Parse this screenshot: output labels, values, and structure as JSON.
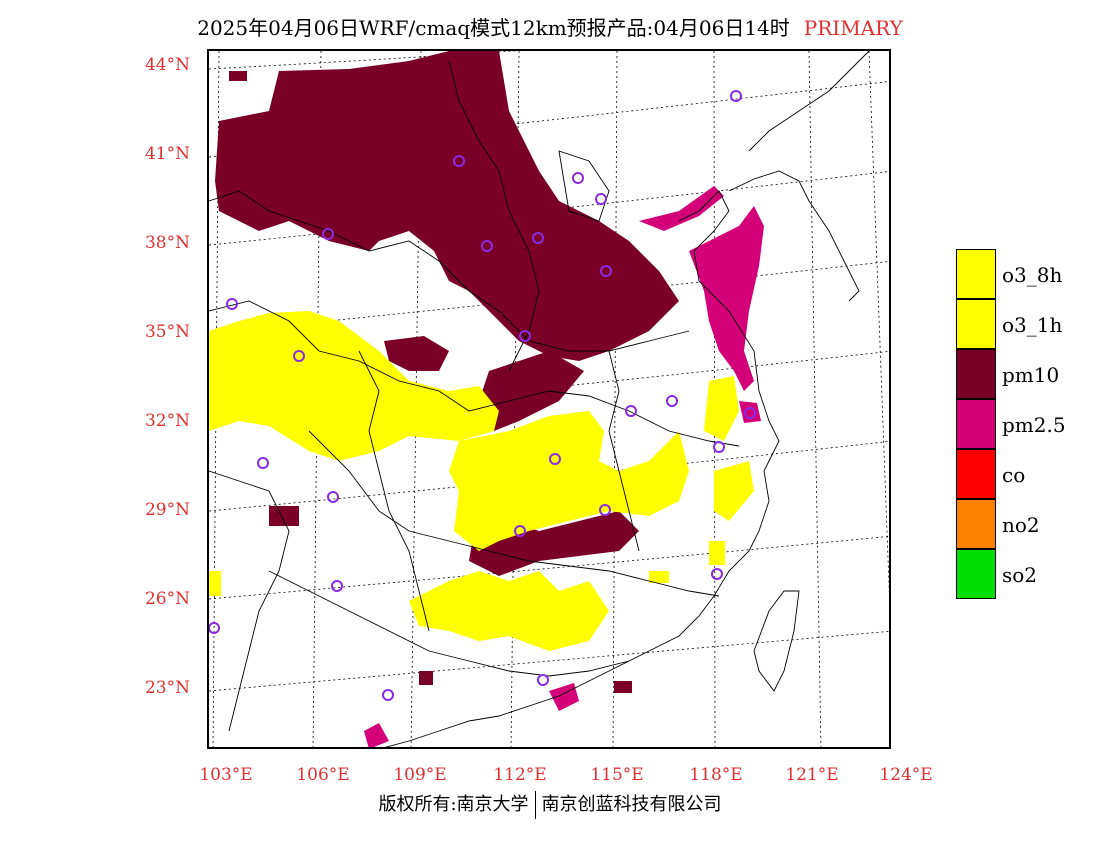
{
  "title": {
    "main": "2025年04月06日WRF/cmaq模式12km预报产品:04月06日14时",
    "tag": "PRIMARY"
  },
  "colors": {
    "label_red": "#e03030",
    "o3_8h": "#ffff00",
    "o3_1h": "#ffff00",
    "pm10": "#7a0028",
    "pm2_5": "#d4007a",
    "co": "#ff0000",
    "no2": "#ff8000",
    "so2": "#00dd00",
    "station": "#8a2be2"
  },
  "axes": {
    "lat_labels": [
      "44°N",
      "41°N",
      "38°N",
      "35°N",
      "32°N",
      "29°N",
      "26°N",
      "23°N"
    ],
    "lon_labels": [
      "103°E",
      "106°E",
      "109°E",
      "112°E",
      "115°E",
      "118°E",
      "121°E",
      "124°E"
    ]
  },
  "legend": [
    {
      "label": "o3_8h",
      "color": "#ffff00"
    },
    {
      "label": "o3_1h",
      "color": "#ffff00"
    },
    {
      "label": "pm10",
      "color": "#7a0028"
    },
    {
      "label": "pm2.5",
      "color": "#d4007a"
    },
    {
      "label": "co",
      "color": "#ff0000"
    },
    {
      "label": "no2",
      "color": "#ff8000"
    },
    {
      "label": "so2",
      "color": "#00dd00"
    }
  ],
  "footer": {
    "left": "版权所有:南京大学",
    "right": "南京创蓝科技有限公司"
  }
}
